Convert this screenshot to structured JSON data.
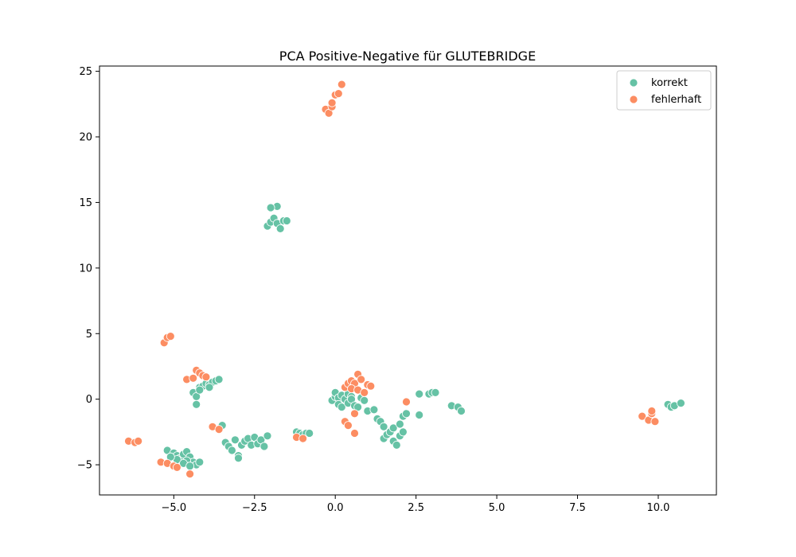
{
  "chart_data": {
    "type": "scatter",
    "title": "PCA Positive-Negative für GLUTEBRIDGE",
    "xlabel": "",
    "ylabel": "",
    "xlim": [
      -7.3,
      11.8
    ],
    "ylim": [
      -7.3,
      25.4
    ],
    "xticks": [
      -5.0,
      -2.5,
      0.0,
      2.5,
      5.0,
      7.5,
      10.0
    ],
    "xtick_labels": [
      "−5.0",
      "−2.5",
      "0.0",
      "2.5",
      "5.0",
      "7.5",
      "10.0"
    ],
    "yticks": [
      -5,
      0,
      5,
      10,
      15,
      20,
      25
    ],
    "ytick_labels": [
      "−5",
      "0",
      "5",
      "10",
      "15",
      "20",
      "25"
    ],
    "legend_position": "top-right",
    "grid": false,
    "series": [
      {
        "name": "korrekt",
        "color": "#66c2a5",
        "points": [
          [
            -5.2,
            -3.9
          ],
          [
            -5.0,
            -4.1
          ],
          [
            -4.9,
            -4.3
          ],
          [
            -4.8,
            -4.5
          ],
          [
            -4.7,
            -4.2
          ],
          [
            -4.6,
            -4.0
          ],
          [
            -4.5,
            -4.4
          ],
          [
            -4.4,
            -4.8
          ],
          [
            -4.3,
            -5.0
          ],
          [
            -4.6,
            -4.7
          ],
          [
            -4.9,
            -4.6
          ],
          [
            -5.1,
            -4.4
          ],
          [
            -4.7,
            -4.9
          ],
          [
            -4.5,
            -5.1
          ],
          [
            -4.2,
            -4.8
          ],
          [
            -4.4,
            0.5
          ],
          [
            -4.3,
            0.2
          ],
          [
            -4.3,
            -0.4
          ],
          [
            -4.2,
            0.9
          ],
          [
            -4.1,
            1.0
          ],
          [
            -4.0,
            1.2
          ],
          [
            -3.9,
            1.1
          ],
          [
            -3.8,
            1.3
          ],
          [
            -3.7,
            1.4
          ],
          [
            -3.6,
            1.5
          ],
          [
            -4.2,
            0.7
          ],
          [
            -3.9,
            0.9
          ],
          [
            -3.8,
            -2.1
          ],
          [
            -3.6,
            -2.3
          ],
          [
            -3.5,
            -2.0
          ],
          [
            -3.4,
            -3.3
          ],
          [
            -3.3,
            -3.6
          ],
          [
            -3.2,
            -3.9
          ],
          [
            -3.1,
            -3.1
          ],
          [
            -3.0,
            -4.3
          ],
          [
            -3.0,
            -4.5
          ],
          [
            -2.9,
            -3.5
          ],
          [
            -2.8,
            -3.2
          ],
          [
            -2.7,
            -3.0
          ],
          [
            -2.6,
            -3.5
          ],
          [
            -2.5,
            -2.9
          ],
          [
            -2.4,
            -3.4
          ],
          [
            -2.3,
            -3.1
          ],
          [
            -2.2,
            -3.6
          ],
          [
            -2.1,
            -2.8
          ],
          [
            -1.2,
            -2.5
          ],
          [
            -1.1,
            -2.6
          ],
          [
            -1.0,
            -2.7
          ],
          [
            -0.9,
            -2.6
          ],
          [
            -0.8,
            -2.6
          ],
          [
            -2.1,
            13.2
          ],
          [
            -2.0,
            13.5
          ],
          [
            -1.9,
            13.8
          ],
          [
            -1.8,
            14.7
          ],
          [
            -1.8,
            13.4
          ],
          [
            -1.7,
            13.0
          ],
          [
            -1.6,
            13.6
          ],
          [
            -1.5,
            13.6
          ],
          [
            -2.0,
            14.6
          ],
          [
            -0.1,
            -0.1
          ],
          [
            0.0,
            0.2
          ],
          [
            0.0,
            0.5
          ],
          [
            0.1,
            0.1
          ],
          [
            0.1,
            -0.4
          ],
          [
            0.2,
            0.3
          ],
          [
            0.2,
            -0.6
          ],
          [
            0.3,
            0.0
          ],
          [
            0.4,
            0.4
          ],
          [
            0.4,
            -0.3
          ],
          [
            0.5,
            0.2
          ],
          [
            0.5,
            0.0
          ],
          [
            0.6,
            -0.5
          ],
          [
            0.7,
            -0.6
          ],
          [
            0.8,
            0.1
          ],
          [
            0.9,
            -0.1
          ],
          [
            1.0,
            -0.9
          ],
          [
            1.2,
            -0.8
          ],
          [
            1.3,
            -1.5
          ],
          [
            1.4,
            -1.7
          ],
          [
            1.5,
            -2.1
          ],
          [
            1.5,
            -3.0
          ],
          [
            1.6,
            -2.7
          ],
          [
            1.7,
            -2.5
          ],
          [
            1.8,
            -3.2
          ],
          [
            1.8,
            -2.2
          ],
          [
            1.9,
            -3.5
          ],
          [
            2.0,
            -2.8
          ],
          [
            2.0,
            -1.9
          ],
          [
            2.1,
            -2.5
          ],
          [
            2.1,
            -1.3
          ],
          [
            2.2,
            -1.1
          ],
          [
            2.6,
            -1.2
          ],
          [
            2.6,
            0.4
          ],
          [
            2.9,
            0.4
          ],
          [
            3.0,
            0.5
          ],
          [
            3.1,
            0.5
          ],
          [
            3.6,
            -0.5
          ],
          [
            3.8,
            -0.6
          ],
          [
            3.9,
            -0.9
          ],
          [
            10.3,
            -0.4
          ],
          [
            10.4,
            -0.6
          ],
          [
            10.5,
            -0.5
          ],
          [
            10.7,
            -0.3
          ]
        ]
      },
      {
        "name": "fehlerhaft",
        "color": "#fc8d62",
        "points": [
          [
            -6.4,
            -3.2
          ],
          [
            -6.2,
            -3.3
          ],
          [
            -6.1,
            -3.2
          ],
          [
            -5.4,
            -4.8
          ],
          [
            -5.2,
            -4.9
          ],
          [
            -5.0,
            -5.1
          ],
          [
            -4.9,
            -5.2
          ],
          [
            -4.5,
            -5.7
          ],
          [
            -5.3,
            4.3
          ],
          [
            -5.2,
            4.7
          ],
          [
            -5.1,
            4.8
          ],
          [
            -4.6,
            1.5
          ],
          [
            -4.4,
            1.6
          ],
          [
            -4.3,
            2.2
          ],
          [
            -4.2,
            2.0
          ],
          [
            -4.1,
            1.8
          ],
          [
            -4.0,
            1.7
          ],
          [
            -3.8,
            -2.1
          ],
          [
            -3.6,
            -2.3
          ],
          [
            -1.2,
            -2.9
          ],
          [
            -1.0,
            -3.0
          ],
          [
            -0.3,
            22.1
          ],
          [
            -0.2,
            21.8
          ],
          [
            -0.1,
            22.3
          ],
          [
            -0.1,
            22.6
          ],
          [
            0.0,
            23.2
          ],
          [
            0.1,
            23.3
          ],
          [
            0.2,
            24.0
          ],
          [
            0.3,
            0.9
          ],
          [
            0.4,
            1.2
          ],
          [
            0.5,
            1.4
          ],
          [
            0.6,
            1.2
          ],
          [
            0.7,
            1.9
          ],
          [
            0.8,
            1.5
          ],
          [
            1.0,
            1.1
          ],
          [
            1.1,
            1.0
          ],
          [
            0.5,
            0.8
          ],
          [
            0.7,
            0.7
          ],
          [
            0.9,
            0.5
          ],
          [
            0.6,
            -1.1
          ],
          [
            0.3,
            -1.7
          ],
          [
            0.4,
            -2.0
          ],
          [
            0.6,
            -2.6
          ],
          [
            2.2,
            -0.2
          ],
          [
            9.5,
            -1.3
          ],
          [
            9.7,
            -1.6
          ],
          [
            9.8,
            -1.1
          ],
          [
            9.8,
            -0.9
          ],
          [
            9.9,
            -1.7
          ]
        ]
      }
    ]
  }
}
